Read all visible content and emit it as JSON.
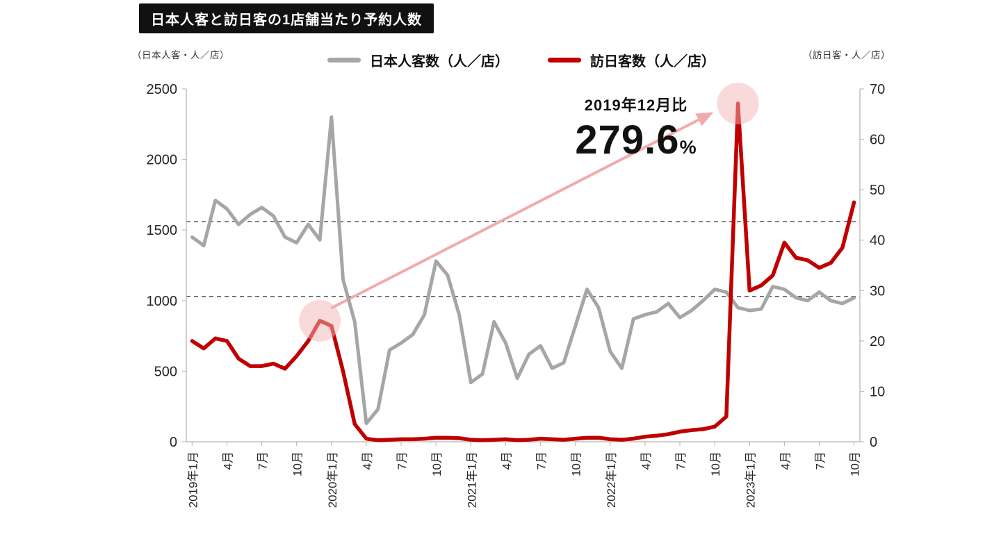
{
  "title": "日本人客と訪日客の1店舗当たり予約人数",
  "left_axis_unit": "（日本人客・人／店）",
  "right_axis_unit": "（訪日客・人／店）",
  "legend": [
    {
      "label": "日本人客数（人／店）",
      "color": "#a6a6a6"
    },
    {
      "label": "訪日客数（人／店）",
      "color": "#c00000"
    }
  ],
  "annotation": {
    "label": "2019年12月比",
    "value": "279.6",
    "unit": "%"
  },
  "colors": {
    "arrow": "#f2abab",
    "highlight": "#f3b6b6",
    "reference": "#595959",
    "axis": "#bfbfbf",
    "tick_text": "#262626"
  },
  "chart_data": {
    "type": "line",
    "title": "日本人客と訪日客の1店舗当たり予約人数",
    "legend_position": "top",
    "grid": "two dashed horizontal reference lines only",
    "x": [
      "2019年1月",
      "2019年2月",
      "2019年3月",
      "2019年4月",
      "2019年5月",
      "2019年6月",
      "2019年7月",
      "2019年8月",
      "2019年9月",
      "2019年10月",
      "2019年11月",
      "2019年12月",
      "2020年1月",
      "2020年2月",
      "2020年3月",
      "2020年4月",
      "2020年5月",
      "2020年6月",
      "2020年7月",
      "2020年8月",
      "2020年9月",
      "2020年10月",
      "2020年11月",
      "2020年12月",
      "2021年1月",
      "2021年2月",
      "2021年3月",
      "2021年4月",
      "2021年5月",
      "2021年6月",
      "2021年7月",
      "2021年8月",
      "2021年9月",
      "2021年10月",
      "2021年11月",
      "2021年12月",
      "2022年1月",
      "2022年2月",
      "2022年3月",
      "2022年4月",
      "2022年5月",
      "2022年6月",
      "2022年7月",
      "2022年8月",
      "2022年9月",
      "2022年10月",
      "2022年11月",
      "2022年12月",
      "2023年1月",
      "2023年2月",
      "2023年3月",
      "2023年4月",
      "2023年5月",
      "2023年6月",
      "2023年7月",
      "2023年8月",
      "2023年9月",
      "2023年10月"
    ],
    "x_tick_labels": [
      {
        "index": 0,
        "label": "2019年1月"
      },
      {
        "index": 3,
        "label": "4月"
      },
      {
        "index": 6,
        "label": "7月"
      },
      {
        "index": 9,
        "label": "10月"
      },
      {
        "index": 12,
        "label": "2020年1月"
      },
      {
        "index": 15,
        "label": "4月"
      },
      {
        "index": 18,
        "label": "7月"
      },
      {
        "index": 21,
        "label": "10月"
      },
      {
        "index": 24,
        "label": "2021年1月"
      },
      {
        "index": 27,
        "label": "4月"
      },
      {
        "index": 30,
        "label": "7月"
      },
      {
        "index": 33,
        "label": "10月"
      },
      {
        "index": 36,
        "label": "2022年1月"
      },
      {
        "index": 39,
        "label": "4月"
      },
      {
        "index": 42,
        "label": "7月"
      },
      {
        "index": 45,
        "label": "10月"
      },
      {
        "index": 48,
        "label": "2023年1月"
      },
      {
        "index": 51,
        "label": "4月"
      },
      {
        "index": 54,
        "label": "7月"
      },
      {
        "index": 57,
        "label": "10月"
      }
    ],
    "left_axis": {
      "label": "（日本人客・人／店）",
      "min": 0,
      "max": 2500,
      "ticks": [
        0,
        500,
        1000,
        1500,
        2000,
        2500
      ]
    },
    "right_axis": {
      "label": "（訪日客・人／店）",
      "min": 0,
      "max": 70,
      "ticks": [
        0,
        10,
        20,
        30,
        40,
        50,
        60,
        70
      ]
    },
    "reference_lines_left_axis": [
      1560,
      1030
    ],
    "series": [
      {
        "name": "日本人客数（人／店）",
        "axis": "left",
        "color": "#a6a6a6",
        "values": [
          1450,
          1390,
          1710,
          1650,
          1540,
          1610,
          1660,
          1600,
          1450,
          1410,
          1540,
          1430,
          2300,
          1150,
          850,
          130,
          230,
          650,
          700,
          760,
          900,
          1280,
          1180,
          900,
          420,
          480,
          850,
          700,
          450,
          620,
          680,
          520,
          560,
          820,
          1080,
          950,
          640,
          520,
          870,
          900,
          920,
          980,
          880,
          930,
          1000,
          1080,
          1060,
          950,
          930,
          940,
          1100,
          1080,
          1020,
          1000,
          1060,
          1000,
          980,
          1020
        ]
      },
      {
        "name": "訪日客数（人／店）",
        "axis": "right",
        "color": "#c00000",
        "values": [
          20,
          18.5,
          20.5,
          20,
          16.5,
          15,
          15,
          15.5,
          14.5,
          17,
          20,
          24,
          23,
          14,
          3.5,
          0.6,
          0.3,
          0.4,
          0.5,
          0.5,
          0.6,
          0.8,
          0.8,
          0.7,
          0.4,
          0.3,
          0.4,
          0.5,
          0.3,
          0.4,
          0.6,
          0.5,
          0.4,
          0.6,
          0.8,
          0.8,
          0.5,
          0.4,
          0.6,
          1.0,
          1.2,
          1.5,
          2.0,
          2.3,
          2.5,
          3.0,
          5.0,
          67.1,
          30,
          31,
          33,
          39.5,
          36.5,
          36,
          34.5,
          35.5,
          38.5,
          47.5
        ]
      }
    ],
    "highlights": [
      {
        "month": "2019年12月",
        "series": "訪日客数（人／店）",
        "value": 24
      },
      {
        "month": "2022年12月",
        "series": "訪日客数（人／店）",
        "value": 67.1
      }
    ],
    "annotation": {
      "label": "2019年12月比",
      "value": "279.6",
      "unit": "%"
    }
  }
}
